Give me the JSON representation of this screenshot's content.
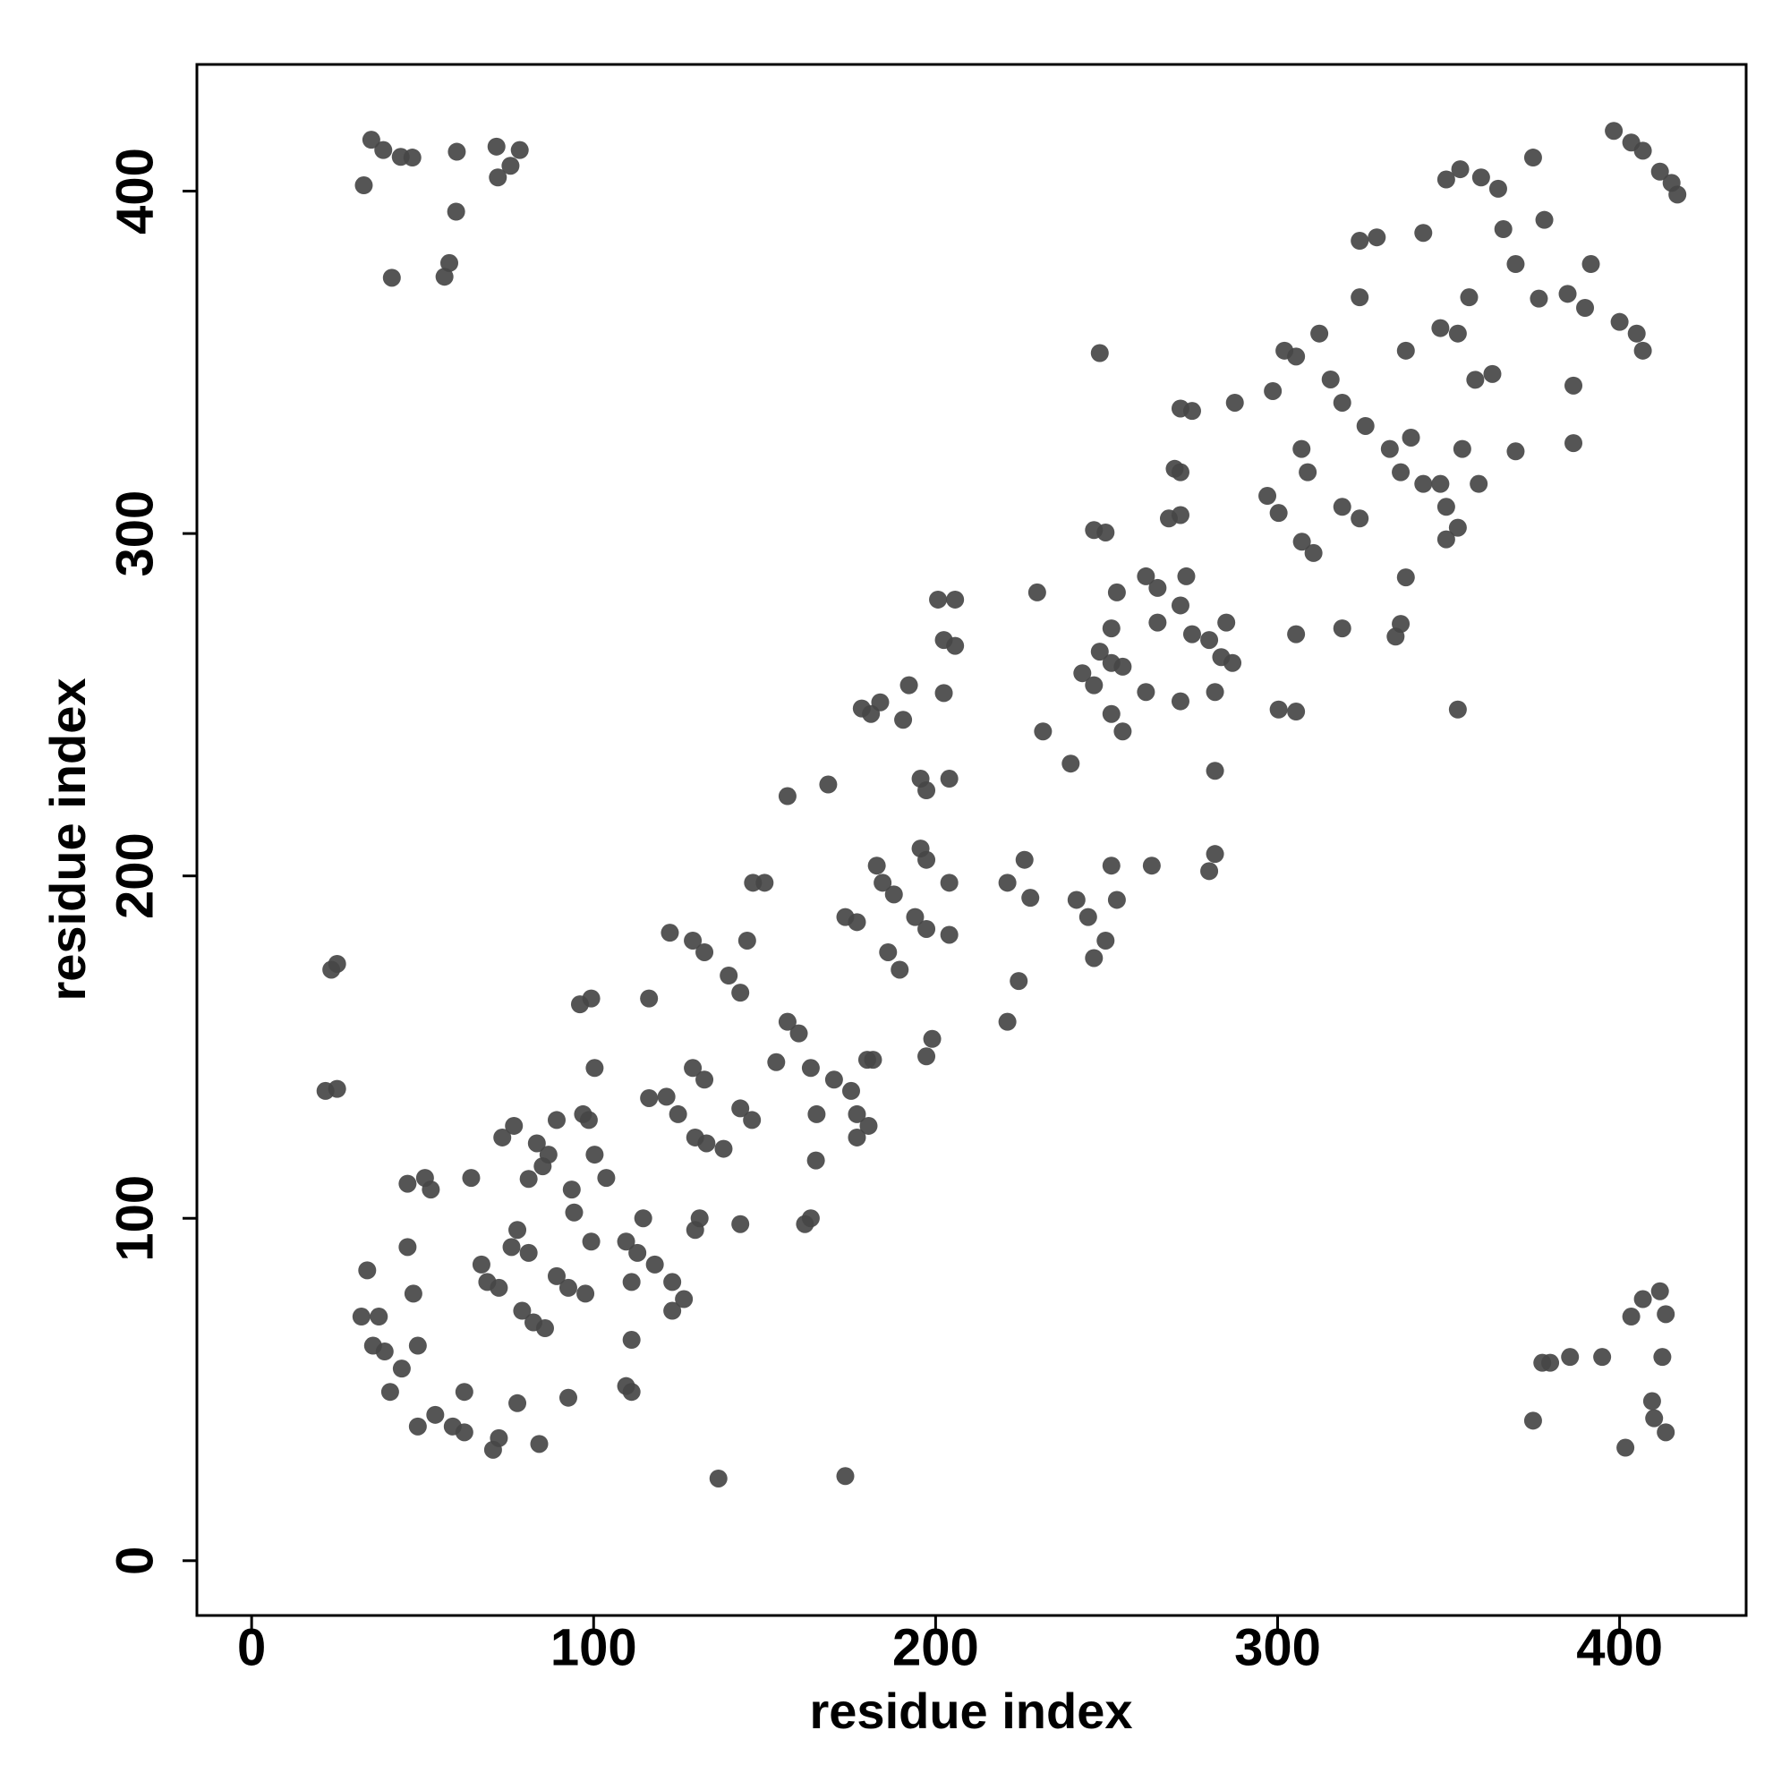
{
  "chart_data": {
    "type": "scatter",
    "x_label": "residue index",
    "y_label": "residue index",
    "xlim": [
      -16,
      437
    ],
    "ylim": [
      -16,
      437
    ],
    "xticks": [
      0,
      100,
      200,
      300,
      400
    ],
    "yticks": [
      0,
      100,
      200,
      300,
      400
    ],
    "color": "#474747",
    "x": [
      35,
      38.5,
      43.6,
      47,
      32.8,
      60,
      59.8,
      57.8,
      56.4,
      41,
      71.6,
      72,
      75.7,
      78.4,
      374.7,
      377.4,
      379.7,
      385.5,
      394.9,
      401.7,
      403.4,
      406.8,
      411.8,
      413.5,
      409.5,
      410.1,
      413.5,
      412.5,
      349.3,
      353.4,
      359.5,
      364.5,
      374.7,
      378,
      398.3,
      403.4,
      406.8,
      411.8,
      415.2,
      416.9,
      324,
      329,
      342.6,
      324,
      347.6,
      352.7,
      356,
      366,
      369.6,
      376.4,
      384.8,
      389.9,
      391.6,
      400,
      405,
      406.8,
      386.5,
      386.5,
      369.6,
      357.8,
      362.8,
      354,
      349.3,
      352.7,
      358.8,
      337.5,
      339,
      332.8,
      336,
      342.6,
      347.6,
      315.5,
      318.9,
      325.7,
      312.2,
      302,
      298.6,
      305.4,
      307,
      308.8,
      297,
      300.3,
      307.1,
      310.5,
      318.9,
      324,
      318.9,
      305.4,
      300.3,
      305.4,
      336,
      334.5,
      352.7,
      337.5,
      349.3,
      271.6,
      275,
      287.5,
      269.9,
      271.6,
      248,
      246.3,
      249.7,
      268.2,
      271.6,
      261.5,
      264.9,
      273.3,
      271.6,
      264.9,
      251.4,
      248,
      251.4,
      254.7,
      253,
      275,
      280,
      283.5,
      286.8,
      285,
      281.7,
      261.5,
      271.6,
      242.9,
      246.3,
      251.4,
      254.7,
      229.7,
      231.4,
      239.5,
      281.7,
      281.7,
      280,
      263.2,
      251.4,
      241.2,
      244.6,
      246.3,
      249.7,
      253,
      226,
      227.7,
      221,
      224.3,
      221,
      200.7,
      205.7,
      202.4,
      205.7,
      202.4,
      204,
      192.2,
      178.4,
      183.8,
      190.5,
      195.6,
      197.3,
      181.1,
      195.6,
      197.3,
      204,
      204,
      194,
      197.3,
      187.8,
      184.5,
      182.8,
      186.1,
      189.5,
      173.6,
      177,
      197.3,
      199,
      180,
      168.6,
      156.7,
      146.6,
      150,
      144.9,
      122.3,
      129,
      132.4,
      139.5,
      142.9,
      116.2,
      99.3,
      96,
      129,
      132.4,
      142.9,
      146.3,
      116.2,
      121.3,
      124.7,
      129.7,
      133,
      138,
      129.7,
      131,
      142.9,
      161.8,
      163.5,
      165,
      156.7,
      160,
      153.4,
      163.5,
      170.3,
      175.3,
      177,
      180.4,
      177,
      181.7,
      165.2,
      136.5,
      173.6,
      111.1,
      109.5,
      111.1,
      111.1,
      109.5,
      112.8,
      117.9,
      123,
      126.4,
      123,
      114.5,
      99.3,
      97.6,
      103.7,
      100.3,
      98.6,
      100.3,
      96.9,
      93.6,
      85.1,
      86.8,
      83.4,
      76.7,
      73.3,
      89.2,
      81,
      94.3,
      77.7,
      76,
      81,
      67.2,
      68.9,
      72.3,
      89.2,
      92.6,
      79.1,
      82.4,
      85.8,
      92.6,
      77.7,
      84.1,
      72.3,
      70.6,
      62.2,
      58.8,
      53.7,
      62.2,
      48.6,
      40.5,
      43.9,
      38.9,
      35.5,
      32.1,
      37.2,
      33.8,
      45.6,
      47.3,
      48.6,
      45.6,
      50.7,
      52.4,
      64.2,
      23.3,
      25,
      21.6,
      25
    ],
    "values": [
      415,
      412,
      410,
      409.8,
      401.7,
      411.5,
      394,
      379,
      375,
      374.7,
      413,
      404,
      407.4,
      412,
      40.9,
      57.8,
      57.8,
      59.5,
      59.5,
      33,
      71.3,
      76.4,
      78.7,
      72,
      46.6,
      41.6,
      37.5,
      59.5,
      403.4,
      406.4,
      404,
      400.7,
      409.8,
      391.6,
      417.6,
      414.2,
      411.8,
      405.7,
      402.4,
      399,
      385.5,
      386.5,
      387.8,
      369,
      360,
      358.4,
      369,
      388.9,
      378.7,
      368.6,
      370,
      365.9,
      378.7,
      361.8,
      358.4,
      353.4,
      343.2,
      326.4,
      324,
      344.9,
      346.6,
      324.7,
      307.8,
      301.7,
      314.5,
      353.4,
      328,
      324.7,
      317.9,
      314.5,
      314.5,
      345,
      338.2,
      331.4,
      358.4,
      353.4,
      341.6,
      351.7,
      324.7,
      317.9,
      311,
      306,
      297.6,
      294.3,
      307.8,
      304.4,
      272.3,
      270.6,
      248.6,
      248,
      273.6,
      269.9,
      248.6,
      287.2,
      298.3,
      336.5,
      335.8,
      338.2,
      318.9,
      317.9,
      352.7,
      301,
      300.3,
      304.4,
      305.4,
      287.5,
      284.1,
      287.5,
      279,
      274,
      272.3,
      265.5,
      262.2,
      261.1,
      282.8,
      270.6,
      268.9,
      263.9,
      262.2,
      274,
      253.7,
      253.7,
      251,
      259.2,
      255.7,
      247.3,
      242.2,
      282.8,
      242.2,
      232.8,
      230.7,
      206.4,
      201.4,
      203,
      203,
      193,
      188,
      176,
      181.1,
      193,
      204.7,
      193.6,
      198,
      169.3,
      157.4,
      280.7,
      280.7,
      268.9,
      267.2,
      253.4,
      228.4,
      255.7,
      248.9,
      250.7,
      245.6,
      228.4,
      225,
      247.3,
      208,
      204.7,
      198,
      182.8,
      188,
      184.5,
      194.6,
      198,
      203,
      177.7,
      172.6,
      188,
      186.5,
      147.3,
      152.4,
      146.3,
      226.7,
      223.3,
      198,
      198,
      181.1,
      183.4,
      181.1,
      177.7,
      170.9,
      165.9,
      164.2,
      164.2,
      162.5,
      143.9,
      140.5,
      132.1,
      128.7,
      135.1,
      135.5,
      130.4,
      123.6,
      121.9,
      120.3,
      96.6,
      100,
      98.3,
      98.3,
      100,
      116.9,
      157.4,
      154,
      145.6,
      143.9,
      140.5,
      137.2,
      130.4,
      127,
      123.6,
      146.3,
      130.4,
      24,
      24.7,
      64.5,
      51,
      49.3,
      81.4,
      93.2,
      89.9,
      86.5,
      81.4,
      76.4,
      73,
      100,
      93.2,
      78,
      111.8,
      118.6,
      128.7,
      143.9,
      130.4,
      108.4,
      115.2,
      118.6,
      121.9,
      127,
      123.6,
      128.7,
      111.5,
      101.7,
      96.6,
      91.6,
      89.9,
      86.5,
      81.4,
      79.7,
      83.1,
      79.7,
      73,
      69.6,
      67.9,
      47.6,
      46,
      34.1,
      35.8,
      32.4,
      37.5,
      39.2,
      42.6,
      49.3,
      39.2,
      49.3,
      56.1,
      61.1,
      62.8,
      71.3,
      71.3,
      84.8,
      91.6,
      78,
      62.8,
      110.1,
      111.8,
      108.4,
      111.8,
      172.6,
      174.3,
      137.2,
      137.8
    ]
  }
}
